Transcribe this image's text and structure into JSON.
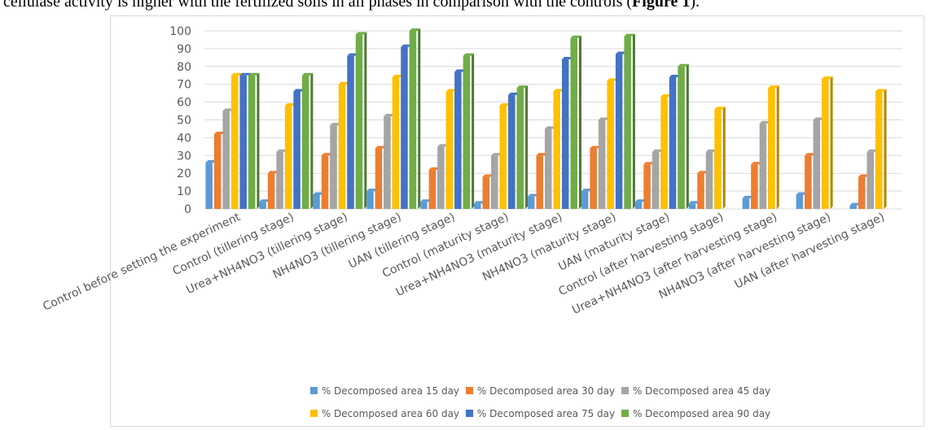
{
  "caption": {
    "text": "cellulase activity is higher with the fertilized soils in all phases in comparison with the controls (",
    "bold": "Figure 1",
    "close": ")."
  },
  "chart_data": {
    "type": "bar",
    "categories": [
      "Control before setting the experiment",
      "Control (tillering stage)",
      "Urea+NH4NO3 (tillering stage)",
      "NH4NO3 (tillering stage)",
      "UAN (tillering stage)",
      "Control (maturity stage)",
      "Urea+NH4NO3 (maturity stage)",
      "NH4NO3 (maturity stage)",
      "UAN (maturity stage)",
      "Control (after harvesting stage)",
      "Urea+NH4NO3 (after harvesting stage)",
      "NH4NO3 (after harvesting stage)",
      "UAN (after harvesting stage)"
    ],
    "series": [
      {
        "name": "% Decomposed area 15 day",
        "color": "#5B9BD5",
        "values": [
          26,
          4,
          8,
          10,
          4,
          3,
          7,
          10,
          4,
          3,
          6,
          8,
          2
        ]
      },
      {
        "name": "% Decomposed area 30 day",
        "color": "#ED7D31",
        "values": [
          42,
          20,
          30,
          34,
          22,
          18,
          30,
          34,
          25,
          20,
          25,
          30,
          18
        ]
      },
      {
        "name": "% Decomposed area 45 day",
        "color": "#A5A5A5",
        "values": [
          55,
          32,
          47,
          52,
          35,
          30,
          45,
          50,
          32,
          32,
          48,
          50,
          32
        ]
      },
      {
        "name": "% Decomposed area 60 day",
        "color": "#FFC000",
        "values": [
          75,
          58,
          70,
          74,
          66,
          58,
          66,
          72,
          63,
          56,
          68,
          73,
          66
        ]
      },
      {
        "name": "% Decomposed area 75 day",
        "color": "#4472C4",
        "values": [
          75,
          66,
          86,
          91,
          77,
          64,
          84,
          87,
          74,
          null,
          null,
          null,
          null
        ]
      },
      {
        "name": "% Decomposed area 90 day",
        "color": "#70AD47",
        "values": [
          75,
          75,
          98,
          100,
          86,
          68,
          96,
          97,
          80,
          null,
          null,
          null,
          null
        ]
      }
    ],
    "yticks": [
      "0",
      "10",
      "20",
      "30",
      "40",
      "50",
      "60",
      "70",
      "80",
      "90",
      "100"
    ],
    "ylim": [
      0,
      100
    ],
    "grid": true,
    "legend_position": "bottom"
  }
}
